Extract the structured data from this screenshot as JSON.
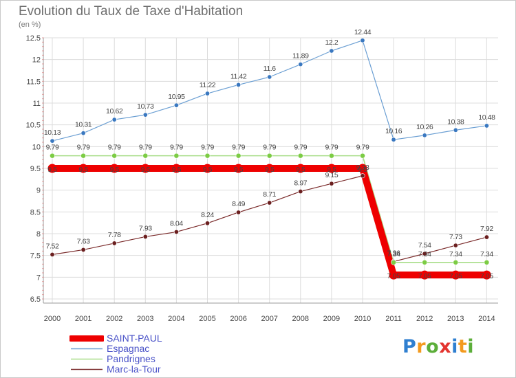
{
  "chart_data": {
    "type": "line",
    "title": "Evolution du Taux de Taxe d'Habitation",
    "subtitle": "(en %)",
    "x": [
      "2000",
      "2001",
      "2002",
      "2003",
      "2004",
      "2005",
      "2006",
      "2007",
      "2008",
      "2009",
      "2010",
      "2011",
      "2012",
      "2013",
      "2014"
    ],
    "ylim": [
      6.5,
      12.5
    ],
    "yticks": [
      "6.5",
      "7",
      "7.5",
      "8",
      "8.5",
      "9",
      "9.5",
      "10",
      "10.5",
      "11",
      "11.5",
      "12",
      "12.5"
    ],
    "grid": true,
    "legend": "bottom-left",
    "series": [
      {
        "name": "SAINT-PAUL",
        "color": "#ee0000",
        "values": [
          9.5,
          9.5,
          9.5,
          9.5,
          9.5,
          9.5,
          9.5,
          9.5,
          9.5,
          9.5,
          9.5,
          7.05,
          7.05,
          7.05,
          7.05
        ],
        "labels": [
          "9.5",
          "9.5",
          "9.5",
          "9.5",
          "9.5",
          "9.5",
          "9.5",
          "9.5",
          "9.5",
          "9.5",
          "9.5",
          "7.05",
          "7.05",
          "7.05",
          "7.05"
        ]
      },
      {
        "name": "Espagnac",
        "color": "#6b9fd3",
        "values": [
          10.13,
          10.31,
          10.62,
          10.73,
          10.95,
          11.22,
          11.42,
          11.6,
          11.89,
          12.2,
          12.44,
          10.16,
          10.26,
          10.38,
          10.48
        ],
        "labels": [
          "10.13",
          "10.31",
          "10.62",
          "10.73",
          "10.95",
          "11.22",
          "11.42",
          "11.6",
          "11.89",
          "12.2",
          "12.44",
          "10.16",
          "10.26",
          "10.38",
          "10.48"
        ]
      },
      {
        "name": "Pandrignes",
        "color": "#a8dd88",
        "values": [
          9.79,
          9.79,
          9.79,
          9.79,
          9.79,
          9.79,
          9.79,
          9.79,
          9.79,
          9.79,
          9.79,
          7.34,
          7.34,
          7.34,
          7.34
        ],
        "labels": [
          "9.79",
          "9.79",
          "9.79",
          "9.79",
          "9.79",
          "9.79",
          "9.79",
          "9.79",
          "9.79",
          "9.79",
          "9.79",
          "7.34",
          "7.34",
          "7.34",
          "7.34"
        ]
      },
      {
        "name": "Marc-la-Tour",
        "color": "#7a2a2a",
        "values": [
          7.52,
          7.63,
          7.78,
          7.93,
          8.04,
          8.24,
          8.49,
          8.71,
          8.97,
          9.15,
          9.33,
          7.36,
          7.54,
          7.73,
          7.92
        ],
        "labels": [
          "7.52",
          "7.63",
          "7.78",
          "7.93",
          "8.04",
          "8.24",
          "8.49",
          "8.71",
          "8.97",
          "9.15",
          "9.33",
          "7.36",
          "7.54",
          "7.73",
          "7.92"
        ]
      }
    ]
  },
  "logo": {
    "letters": [
      "P",
      "r",
      "o",
      "x",
      "i",
      "t",
      "i"
    ],
    "colors": [
      "#2f7fd0",
      "#f39a1e",
      "#5cae3a",
      "#e3342f",
      "#2f7fd0",
      "#f39a1e",
      "#5cae3a"
    ]
  }
}
